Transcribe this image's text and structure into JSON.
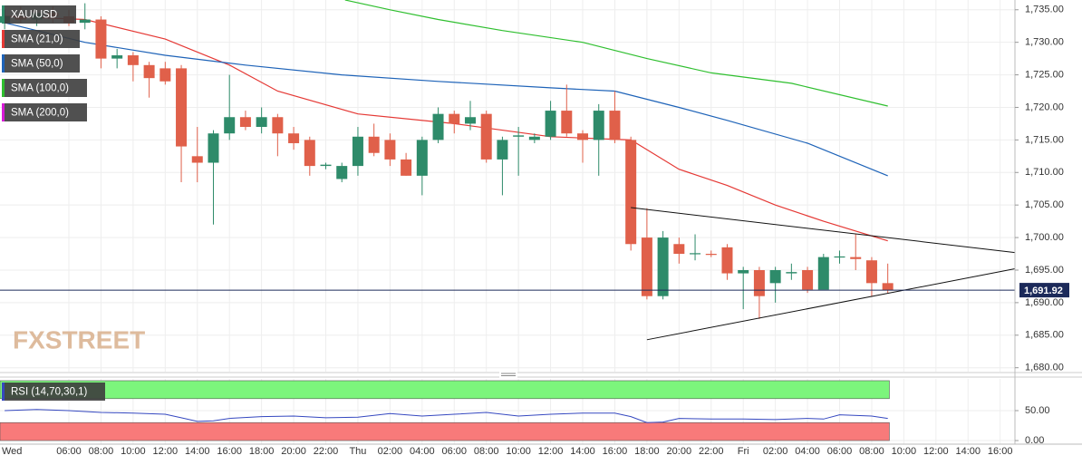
{
  "chart_data": [
    {
      "type": "candlestick",
      "label": "XAU/USD",
      "watermark": "FXSTREET",
      "up_color": "#2e8b6a",
      "down_color": "#e0604a",
      "grid": true,
      "xlim": [
        1.71,
        64.92
      ],
      "ylim": [
        1679.4,
        1736.5
      ],
      "yticks": [
        {
          "value": 1680,
          "label": "1,680.00"
        },
        {
          "value": 1685,
          "label": "1,685.00"
        },
        {
          "value": 1690,
          "label": "1,690.00"
        },
        {
          "value": 1695,
          "label": "1,695.00"
        },
        {
          "value": 1700,
          "label": "1,700.00"
        },
        {
          "value": 1705,
          "label": "1,705.00"
        },
        {
          "value": 1710,
          "label": "1,710.00"
        },
        {
          "value": 1715,
          "label": "1,715.00"
        },
        {
          "value": 1720,
          "label": "1,720.00"
        },
        {
          "value": 1725,
          "label": "1,725.00"
        },
        {
          "value": 1730,
          "label": "1,730.00"
        },
        {
          "value": 1735,
          "label": "1,735.00"
        }
      ],
      "xticks": [
        {
          "value": 0,
          "label": "Wed"
        },
        {
          "value": 6,
          "label": "06:00"
        },
        {
          "value": 8,
          "label": "08:00"
        },
        {
          "value": 10,
          "label": "10:00"
        },
        {
          "value": 12,
          "label": "12:00"
        },
        {
          "value": 14,
          "label": "14:00"
        },
        {
          "value": 16,
          "label": "16:00"
        },
        {
          "value": 18,
          "label": "18:00"
        },
        {
          "value": 20,
          "label": "20:00"
        },
        {
          "value": 22,
          "label": "22:00"
        },
        {
          "value": 24,
          "label": "Thu"
        },
        {
          "value": 26,
          "label": "02:00"
        },
        {
          "value": 28,
          "label": "04:00"
        },
        {
          "value": 30,
          "label": "06:00"
        },
        {
          "value": 32,
          "label": "08:00"
        },
        {
          "value": 34,
          "label": "10:00"
        },
        {
          "value": 36,
          "label": "12:00"
        },
        {
          "value": 38,
          "label": "14:00"
        },
        {
          "value": 40,
          "label": "16:00"
        },
        {
          "value": 42,
          "label": "18:00"
        },
        {
          "value": 44,
          "label": "20:00"
        },
        {
          "value": 46,
          "label": "22:00"
        },
        {
          "value": 48,
          "label": "Fri"
        },
        {
          "value": 50,
          "label": "02:00"
        },
        {
          "value": 52,
          "label": "04:00"
        },
        {
          "value": 54,
          "label": "06:00"
        },
        {
          "value": 56,
          "label": "08:00"
        },
        {
          "value": 58,
          "label": "10:00"
        },
        {
          "value": 60,
          "label": "12:00"
        },
        {
          "value": 62,
          "label": "14:00"
        },
        {
          "value": 64,
          "label": "16:00"
        }
      ],
      "x": [
        2,
        3,
        4,
        5,
        6,
        7,
        8,
        9,
        10,
        11,
        12,
        13,
        14,
        15,
        16,
        17,
        18,
        19,
        20,
        21,
        22,
        23,
        24,
        25,
        26,
        27,
        28,
        29,
        30,
        31,
        32,
        33,
        34,
        35,
        36,
        37,
        38,
        39,
        40,
        41,
        42,
        43,
        44,
        45,
        46,
        47,
        48,
        49,
        50,
        51,
        52,
        53,
        54,
        55,
        56,
        57
      ],
      "open": [
        1733,
        1734,
        1733.5,
        1734.5,
        1734,
        1733,
        1733.5,
        1727.5,
        1728,
        1726.5,
        1726,
        1726,
        1712.5,
        1711.5,
        1716,
        1718.5,
        1717,
        1718.5,
        1716,
        1715,
        1711,
        1709,
        1711,
        1715.5,
        1715,
        1712,
        1709.5,
        1715,
        1719,
        1717.5,
        1719,
        1712,
        1715.5,
        1715,
        1715.5,
        1719.5,
        1716,
        1715,
        1719.5,
        1715,
        1700,
        1691,
        1699,
        1697.5,
        1697.5,
        1698.5,
        1694.5,
        1695,
        1693,
        1694.5,
        1695,
        1692,
        1697,
        1697,
        1696.5,
        1693
      ],
      "high": [
        1735,
        1735.5,
        1735,
        1735.5,
        1735,
        1736,
        1734,
        1729,
        1728.5,
        1727,
        1727,
        1726.5,
        1717,
        1716.5,
        1725,
        1719.5,
        1720,
        1719,
        1717,
        1715.5,
        1711.5,
        1711.5,
        1717,
        1717.5,
        1716,
        1713,
        1715.5,
        1720,
        1719.5,
        1721,
        1719.5,
        1715.5,
        1717,
        1716,
        1721,
        1723.5,
        1716.5,
        1720.5,
        1722.5,
        1715.5,
        1704.5,
        1701,
        1700,
        1700.5,
        1698,
        1699,
        1695.5,
        1695.5,
        1695.5,
        1696,
        1695.5,
        1697.5,
        1698,
        1700.5,
        1697,
        1696
      ],
      "low": [
        1732,
        1733,
        1732.5,
        1733,
        1732.5,
        1732,
        1726,
        1726,
        1724,
        1721.5,
        1723.5,
        1708.5,
        1708.5,
        1702,
        1715,
        1716.5,
        1716,
        1712.5,
        1713.5,
        1709.5,
        1710.5,
        1708.5,
        1709.5,
        1712.5,
        1711,
        1709.5,
        1706.5,
        1714.5,
        1716,
        1716.5,
        1711.5,
        1706.5,
        1709.5,
        1714.5,
        1715,
        1715.5,
        1711.5,
        1709.5,
        1714.5,
        1698,
        1690.5,
        1690.5,
        1696,
        1696.5,
        1697,
        1693.5,
        1689,
        1687.5,
        1690,
        1693.5,
        1691.5,
        1692,
        1696,
        1695,
        1691,
        1691.5
      ],
      "close": [
        1734,
        1733.5,
        1734.5,
        1734,
        1733,
        1733.5,
        1727.5,
        1728,
        1726.5,
        1724.5,
        1724,
        1714,
        1711.5,
        1716,
        1718.5,
        1717,
        1718.5,
        1716,
        1714.5,
        1711,
        1711.2,
        1711,
        1715.5,
        1713,
        1712,
        1709.5,
        1715,
        1719,
        1717.5,
        1718.5,
        1712,
        1715,
        1715.7,
        1715.5,
        1719.5,
        1716,
        1715,
        1719.5,
        1715,
        1699,
        1691,
        1700,
        1697.5,
        1697.6,
        1697.4,
        1694.5,
        1695,
        1691,
        1695,
        1694.7,
        1692,
        1697,
        1697.1,
        1696.7,
        1693,
        1691.92
      ],
      "series": [
        {
          "name": "SMA (21,0)",
          "color": "#e53935",
          "x": [
            2,
            7,
            12,
            16,
            19,
            24,
            30,
            36,
            41,
            42,
            44,
            47,
            50,
            53,
            57
          ],
          "values": [
            1734,
            1733.5,
            1730.5,
            1726.5,
            1722.5,
            1719,
            1717.5,
            1715.5,
            1715,
            1713.5,
            1710.5,
            1708,
            1705,
            1702.5,
            1699.5
          ]
        },
        {
          "name": "SMA (50,0)",
          "color": "#1e63b8",
          "x": [
            2,
            7,
            12,
            17,
            23,
            29,
            36,
            40,
            44,
            47,
            52,
            57
          ],
          "values": [
            1733,
            1730,
            1728,
            1726.5,
            1725,
            1724,
            1723,
            1722.5,
            1720,
            1718,
            1714.5,
            1709.5
          ]
        },
        {
          "name": "SMA (100,0)",
          "color": "#2fbf2f",
          "x": [
            23.2,
            26,
            29,
            33,
            38,
            42,
            46,
            51,
            57
          ],
          "values": [
            1736.5,
            1735,
            1733.5,
            1731.8,
            1730,
            1727.5,
            1725.3,
            1723.7,
            1720.2
          ]
        },
        {
          "name": "SMA (200,0)",
          "color": "#d81bd8",
          "x": [],
          "values": []
        }
      ],
      "trendlines": [
        {
          "x": [
            41,
            64.92
          ],
          "values": [
            1704.6,
            1697.7
          ]
        },
        {
          "x": [
            42,
            64.92
          ],
          "values": [
            1684.3,
            1695.2
          ]
        }
      ],
      "last_price": {
        "value": 1691.92,
        "label": "1,691.92"
      }
    },
    {
      "type": "line",
      "ylim": [
        -6,
        103
      ],
      "yticks": [
        {
          "value": 0,
          "label": "0.00"
        },
        {
          "value": 50,
          "label": "50.00"
        }
      ],
      "bands": [
        {
          "from": 70,
          "to": 100,
          "color": "#7cf57c"
        },
        {
          "from": 0,
          "to": 30,
          "color": "#f87a7a"
        }
      ],
      "series": [
        {
          "name": "RSI (14,70,30,1)",
          "color": "#3548c0",
          "x": [
            2,
            4,
            6,
            8,
            10,
            12,
            13,
            14,
            15,
            16,
            18,
            20,
            22,
            24,
            26,
            28,
            30,
            32,
            34,
            36,
            38,
            40,
            41,
            42,
            43,
            44,
            46,
            48,
            50,
            52,
            53,
            54,
            56,
            57
          ],
          "values": [
            50,
            52,
            50,
            47,
            46,
            44,
            38,
            32,
            33,
            37,
            40,
            41,
            38,
            39,
            45,
            41,
            44,
            47,
            41,
            44,
            46,
            46,
            40,
            30,
            31,
            37,
            36,
            36,
            35,
            37,
            36,
            43,
            41,
            37
          ]
        }
      ]
    }
  ]
}
